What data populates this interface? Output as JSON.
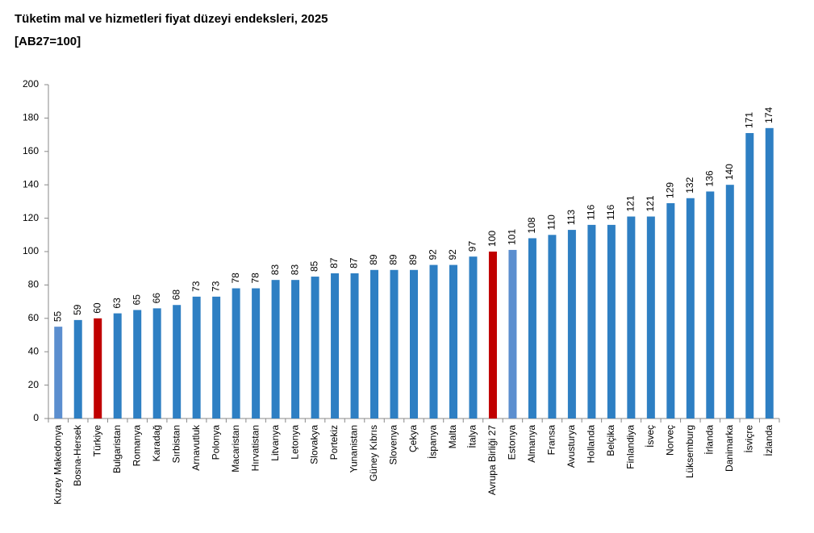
{
  "chart_data": {
    "type": "bar",
    "title": "Tüketim mal ve hizmetleri fiyat düzeyi endeksleri, 2025",
    "subtitle": "[AB27=100]",
    "categories": [
      "Kuzey Makedonya",
      "Bosna-Hersek",
      "Türkiye",
      "Bulgaristan",
      "Romanya",
      "Karadağ",
      "Sırbistan",
      "Arnavutluk",
      "Polonya",
      "Macaristan",
      "Hırvatistan",
      "Litvanya",
      "Letonya",
      "Slovakya",
      "Portekiz",
      "Yunanistan",
      "Güney Kıbrıs",
      "Slovenya",
      "Çekya",
      "İspanya",
      "Malta",
      "İtalya",
      "Avrupa Birliği 27",
      "Estonya",
      "Almanya",
      "Fransa",
      "Avusturya",
      "Hollanda",
      "Belçika",
      "Finlandiya",
      "İsveç",
      "Norveç",
      "Lüksemburg",
      "İrlanda",
      "Danimarka",
      "İsviçre",
      "İzlanda"
    ],
    "values": [
      55,
      59,
      60,
      63,
      65,
      66,
      68,
      73,
      73,
      78,
      78,
      83,
      83,
      85,
      87,
      87,
      89,
      89,
      89,
      92,
      92,
      97,
      100,
      101,
      108,
      110,
      113,
      116,
      116,
      121,
      121,
      129,
      132,
      136,
      140,
      171,
      174
    ],
    "colors": [
      "#5b8ecf",
      "#2e7fc3",
      "#c00000",
      "#2e7fc3",
      "#2e7fc3",
      "#2e7fc3",
      "#2e7fc3",
      "#2e7fc3",
      "#2e7fc3",
      "#2e7fc3",
      "#2e7fc3",
      "#2e7fc3",
      "#2e7fc3",
      "#2e7fc3",
      "#2e7fc3",
      "#2e7fc3",
      "#2e7fc3",
      "#2e7fc3",
      "#2e7fc3",
      "#2e7fc3",
      "#2e7fc3",
      "#2e7fc3",
      "#c00000",
      "#5b8ecf",
      "#2e7fc3",
      "#2e7fc3",
      "#2e7fc3",
      "#2e7fc3",
      "#2e7fc3",
      "#2e7fc3",
      "#2e7fc3",
      "#2e7fc3",
      "#2e7fc3",
      "#2e7fc3",
      "#2e7fc3",
      "#2e7fc3",
      "#2e7fc3"
    ],
    "ylim": [
      0,
      200
    ],
    "yticks": [
      0,
      20,
      40,
      60,
      80,
      100,
      120,
      140,
      160,
      180,
      200
    ],
    "grid": false
  }
}
